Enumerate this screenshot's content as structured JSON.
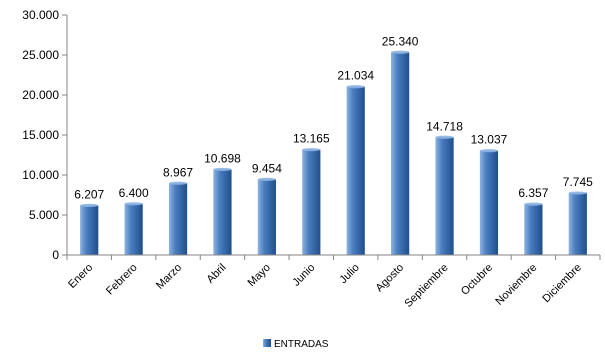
{
  "chart_data": {
    "type": "bar",
    "categories": [
      "Enero",
      "Febrero",
      "Marzo",
      "Abril",
      "Mayo",
      "Junio",
      "Julio",
      "Agosto",
      "Septiembre",
      "Octubre",
      "Noviembre",
      "Diciembre"
    ],
    "series": [
      {
        "name": "ENTRADAS",
        "values": [
          6207,
          6400,
          8967,
          10698,
          9454,
          13165,
          21034,
          25340,
          14718,
          13037,
          6357,
          7745
        ],
        "value_labels": [
          "6.207",
          "6.400",
          "8.967",
          "10.698",
          "9.454",
          "13.165",
          "21.034",
          "25.340",
          "14.718",
          "13.037",
          "6.357",
          "7.745"
        ]
      }
    ],
    "ylim": [
      0,
      30000
    ],
    "yticks": [
      0,
      5000,
      10000,
      15000,
      20000,
      25000,
      30000
    ],
    "ytick_labels": [
      "0",
      "5.000",
      "10.000",
      "15.000",
      "20.000",
      "25.000",
      "30.000"
    ],
    "grid": false,
    "legend_position": "bottom",
    "colors": {
      "bar_light": "#8db3e2",
      "bar_mid": "#4a7ebf",
      "bar_dark": "#1f4e8c",
      "axis": "#868686"
    }
  }
}
